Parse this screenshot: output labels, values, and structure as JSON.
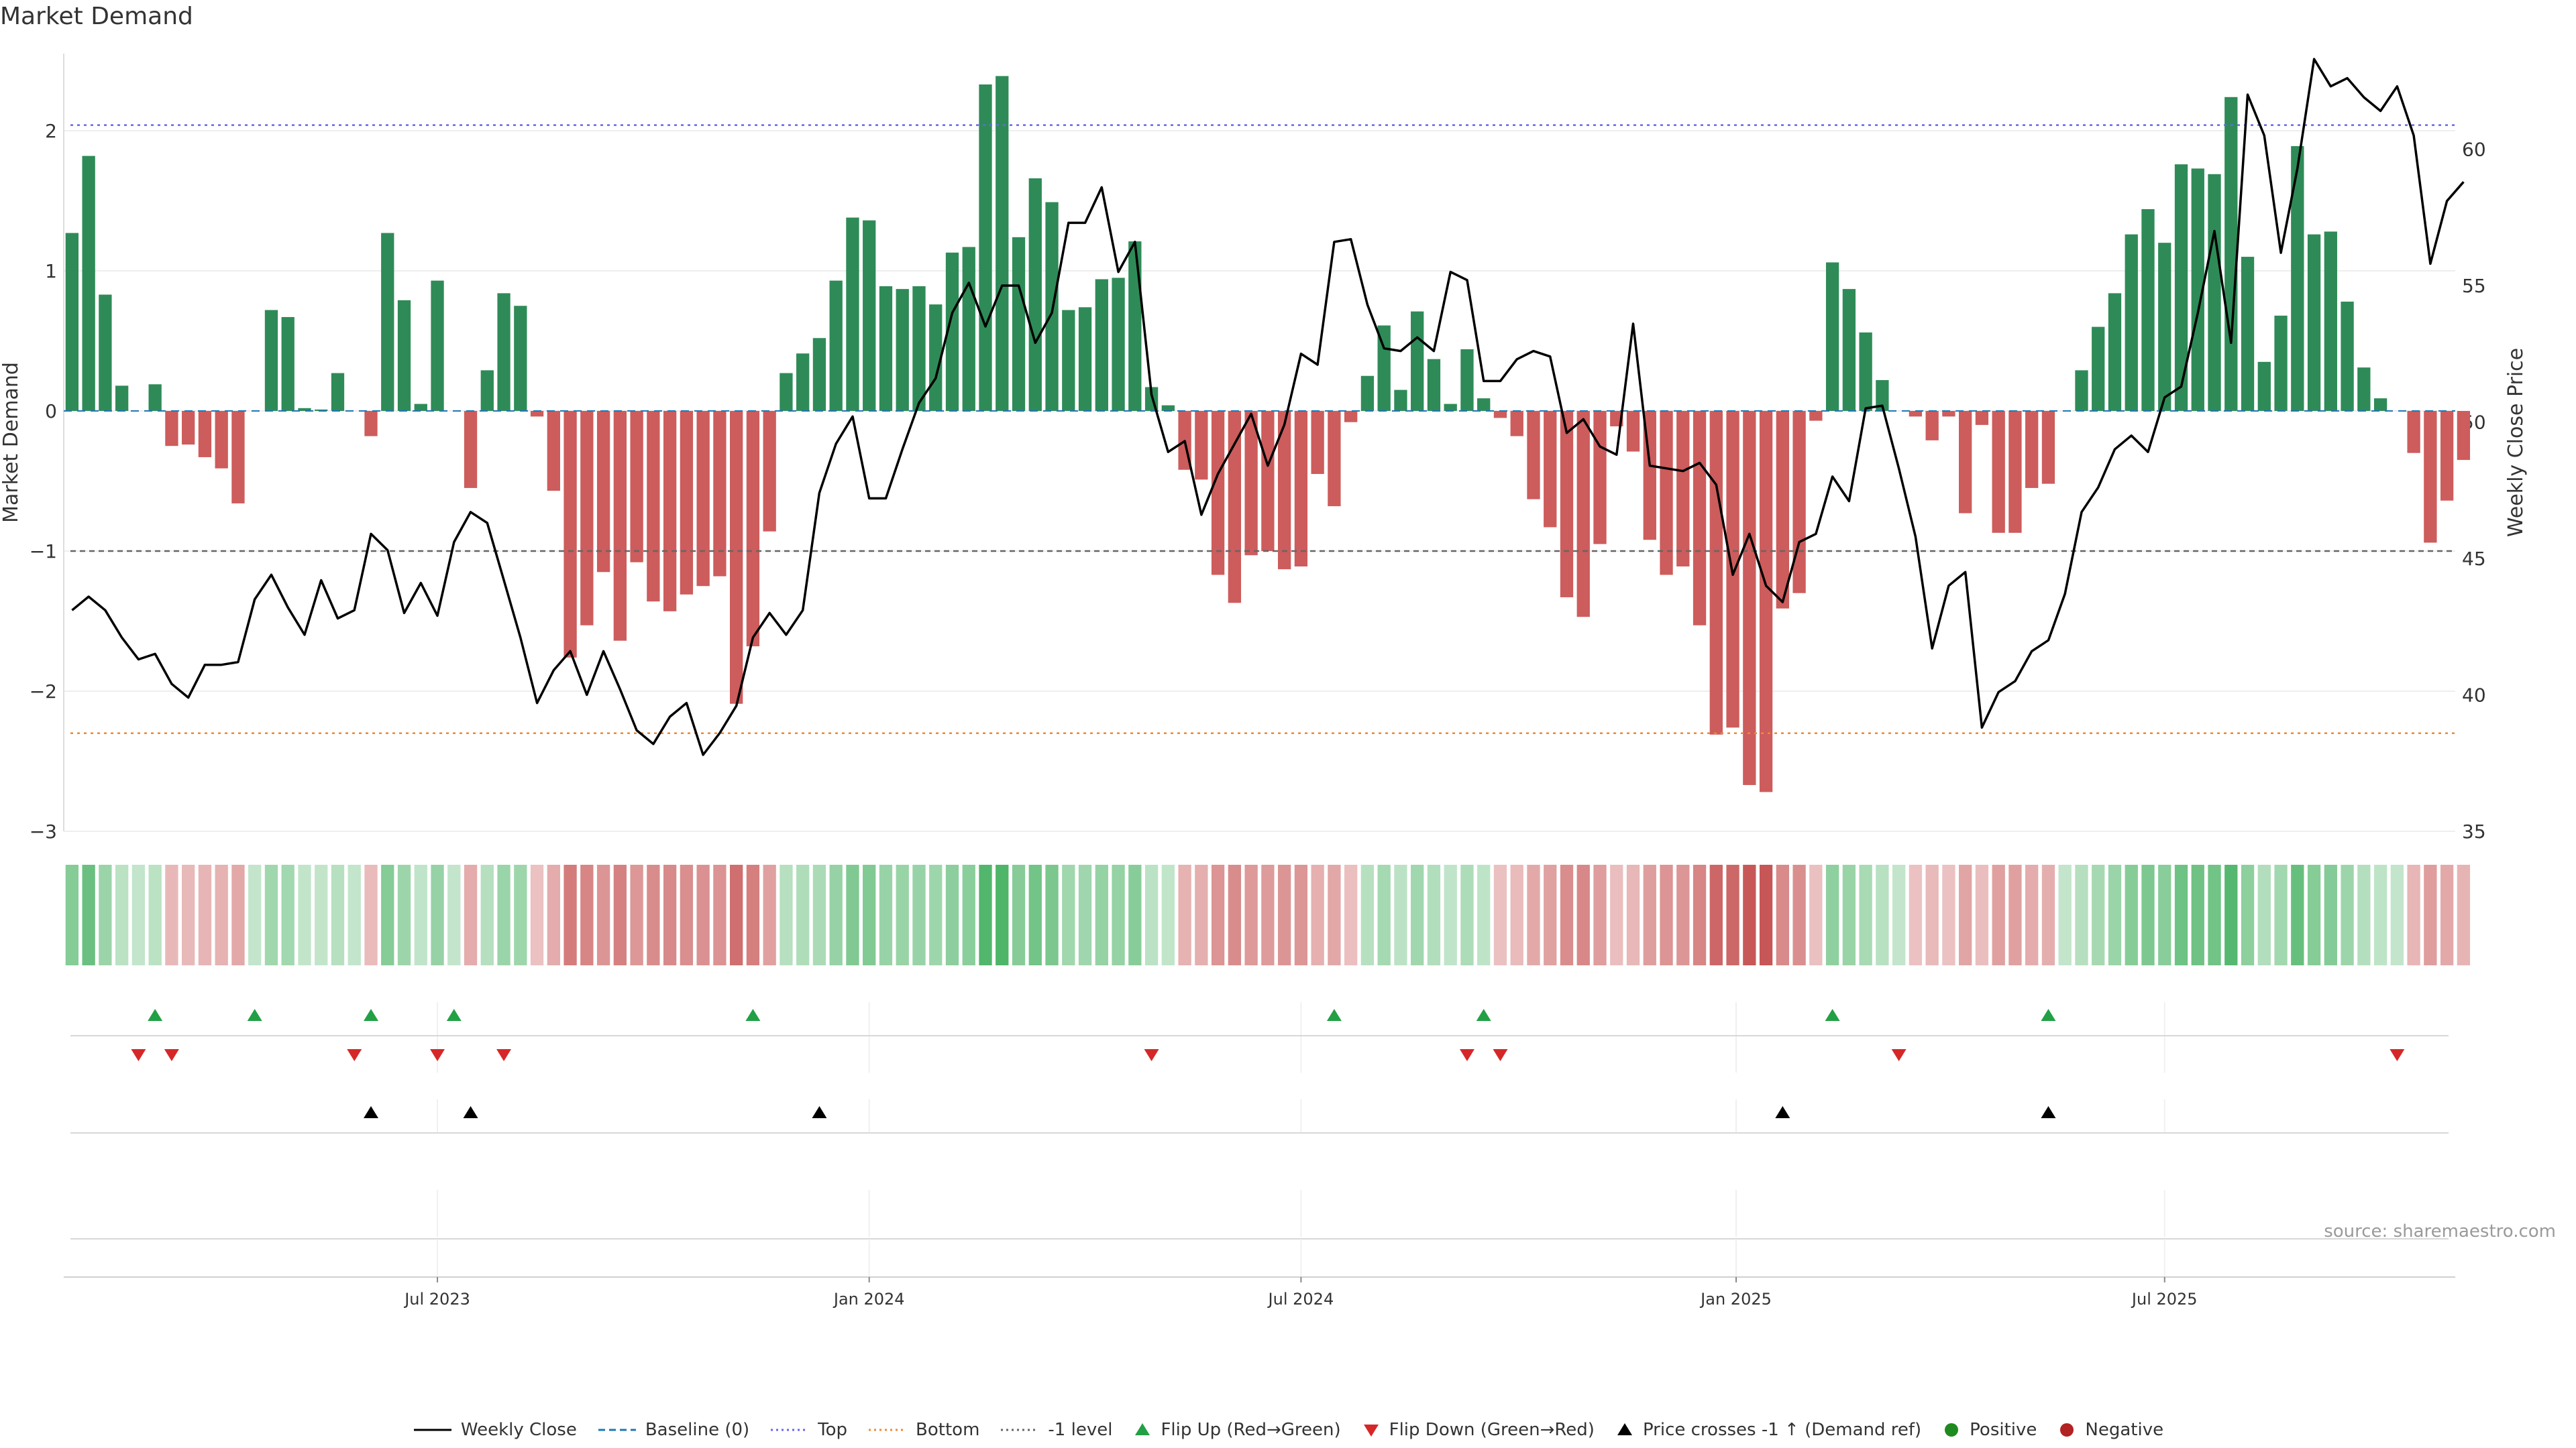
{
  "title": "Market Demand",
  "source": "source: sharemaestro.com",
  "colors": {
    "positive": "#2e8b57",
    "negative": "#cd5c5c",
    "price_line": "#000000",
    "top_line": "#6666ee",
    "bottom_line": "#ee8833",
    "minus_one_line": "#666666",
    "baseline": "#1f77b4",
    "flip_up": "#22a045",
    "flip_down": "#d62728",
    "cross_marker": "#000000",
    "positive_dot": "#1f8a1f",
    "negative_dot": "#b22222"
  },
  "legend": [
    {
      "key": "weekly_close",
      "label": "Weekly Close",
      "symbol": "line-solid",
      "color": "#000000"
    },
    {
      "key": "baseline",
      "label": "Baseline (0)",
      "symbol": "line-dashed",
      "color": "#1f77b4"
    },
    {
      "key": "top",
      "label": "Top",
      "symbol": "line-dotted",
      "color": "#6666ee"
    },
    {
      "key": "bottom",
      "label": "Bottom",
      "symbol": "line-dotted",
      "color": "#ee8833"
    },
    {
      "key": "minus_one",
      "label": "-1 level",
      "symbol": "line-dotted",
      "color": "#666666"
    },
    {
      "key": "flip_up",
      "label": "Flip Up (Red→Green)",
      "symbol": "triangle-up",
      "color": "#22a045"
    },
    {
      "key": "flip_down",
      "label": "Flip Down (Green→Red)",
      "symbol": "triangle-down",
      "color": "#d62728"
    },
    {
      "key": "price_cross",
      "label": "Price crosses -1 ↑ (Demand ref)",
      "symbol": "triangle-up",
      "color": "#000000"
    },
    {
      "key": "positive",
      "label": "Positive",
      "symbol": "dot",
      "color": "#1f8a1f"
    },
    {
      "key": "negative",
      "label": "Negative",
      "symbol": "dot",
      "color": "#b22222"
    }
  ],
  "chart_data": {
    "type": "bar",
    "title": "Market Demand",
    "ylabel": "Market Demand",
    "y2label": "Weekly Close Price",
    "ylim": [
      -3.0,
      2.55
    ],
    "y2lim": [
      35.0,
      63.5
    ],
    "yticks": [
      2,
      1,
      0,
      -1,
      -2,
      -3
    ],
    "ytick_labels": [
      "2",
      "1",
      "0",
      "−1",
      "−2",
      "−3"
    ],
    "y2ticks": [
      60,
      55,
      50,
      45,
      40,
      35
    ],
    "y2tick_labels": [
      "60",
      "55",
      "50",
      "45",
      "40",
      "35"
    ],
    "xtick_positions": [
      22.5,
      48.5,
      74.5,
      100.7,
      126.5
    ],
    "xtick_labels": [
      "Jul 2023",
      "Jan 2024",
      "Jul 2024",
      "Jan 2025",
      "Jul 2025"
    ],
    "reference_lines": {
      "top": 2.04,
      "bottom": -2.3,
      "minus_one": -1.0,
      "baseline": 0.0
    },
    "weeks": 144,
    "demand": [
      1.27,
      1.82,
      0.83,
      0.18,
      0.0,
      0.19,
      -0.25,
      -0.24,
      -0.33,
      -0.41,
      -0.66,
      0.0,
      0.72,
      0.67,
      0.02,
      0.01,
      0.27,
      0.0,
      -0.18,
      1.27,
      0.79,
      0.05,
      0.93,
      0.0,
      -0.55,
      0.29,
      0.84,
      0.75,
      -0.04,
      -0.57,
      -1.76,
      -1.53,
      -1.15,
      -1.64,
      -1.08,
      -1.36,
      -1.43,
      -1.31,
      -1.25,
      -1.18,
      -2.09,
      -1.68,
      -0.86,
      0.27,
      0.41,
      0.52,
      0.93,
      1.38,
      1.36,
      0.89,
      0.87,
      0.89,
      0.76,
      1.13,
      1.17,
      2.33,
      2.39,
      1.24,
      1.66,
      1.49,
      0.72,
      0.74,
      0.94,
      0.95,
      1.21,
      0.17,
      0.04,
      -0.42,
      -0.49,
      -1.17,
      -1.37,
      -1.03,
      -1.0,
      -1.13,
      -1.11,
      -0.45,
      -0.68,
      -0.08,
      0.25,
      0.61,
      0.15,
      0.71,
      0.37,
      0.05,
      0.44,
      0.09,
      -0.05,
      -0.18,
      -0.63,
      -0.83,
      -1.33,
      -1.47,
      -0.95,
      -0.11,
      -0.29,
      -0.92,
      -1.17,
      -1.11,
      -1.53,
      -2.31,
      -2.26,
      -2.67,
      -2.72,
      -1.41,
      -1.3,
      -0.07,
      1.06,
      0.87,
      0.56,
      0.22,
      0.0,
      -0.04,
      -0.21,
      -0.04,
      -0.73,
      -0.1,
      -0.87,
      -0.87,
      -0.55,
      -0.52,
      0.0,
      0.29,
      0.6,
      0.84,
      1.26,
      1.44,
      1.2,
      1.76,
      1.73,
      1.69,
      2.24,
      1.1,
      0.35,
      0.68,
      1.89,
      1.26,
      1.28,
      0.78,
      0.31,
      0.09,
      0.0,
      -0.3,
      -0.94,
      -0.64,
      -0.35
    ],
    "weekly_close": [
      43.1,
      43.6,
      43.1,
      42.1,
      41.3,
      41.5,
      40.4,
      39.9,
      41.1,
      41.1,
      41.2,
      43.5,
      44.4,
      43.2,
      42.2,
      44.2,
      42.8,
      43.1,
      45.9,
      45.3,
      43.0,
      44.1,
      42.9,
      45.6,
      46.7,
      46.3,
      44.2,
      42.1,
      39.7,
      40.9,
      41.6,
      40.0,
      41.6,
      40.2,
      38.7,
      38.2,
      39.2,
      39.7,
      37.8,
      38.6,
      39.6,
      42.1,
      43.0,
      42.2,
      43.1,
      47.4,
      49.2,
      50.2,
      47.2,
      47.2,
      49.0,
      50.7,
      51.6,
      54.0,
      55.1,
      53.5,
      55.0,
      55.0,
      52.9,
      54.0,
      57.3,
      57.3,
      58.6,
      55.5,
      56.6,
      51.0,
      48.9,
      49.3,
      46.6,
      48.1,
      49.2,
      50.3,
      48.4,
      49.9,
      52.5,
      52.1,
      56.6,
      56.7,
      54.3,
      52.7,
      52.6,
      53.1,
      52.6,
      55.5,
      55.2,
      51.5,
      51.5,
      52.3,
      52.6,
      52.4,
      49.6,
      50.1,
      49.1,
      48.8,
      53.6,
      48.4,
      48.3,
      48.2,
      48.5,
      47.7,
      44.4,
      45.9,
      44.0,
      43.4,
      45.6,
      45.9,
      48.0,
      47.1,
      50.5,
      50.6,
      48.3,
      45.8,
      41.7,
      44.0,
      44.5,
      38.8,
      40.1,
      40.5,
      41.6,
      42.0,
      43.7,
      46.7,
      47.6,
      49.0,
      49.5,
      48.9,
      50.9,
      51.3,
      54.0,
      57.0,
      52.9,
      62.0,
      60.5,
      56.2,
      59.3,
      63.3,
      62.3,
      62.6,
      61.9,
      61.4,
      62.3,
      60.5,
      55.8,
      58.1,
      58.8
    ],
    "flip_up_weeks": [
      5,
      11,
      18,
      23,
      41,
      76,
      85,
      106,
      119
    ],
    "flip_down_weeks": [
      4,
      6,
      17,
      22,
      26,
      65,
      84,
      86,
      110,
      140
    ],
    "price_cross_weeks": [
      18,
      24,
      45,
      103,
      119
    ]
  }
}
